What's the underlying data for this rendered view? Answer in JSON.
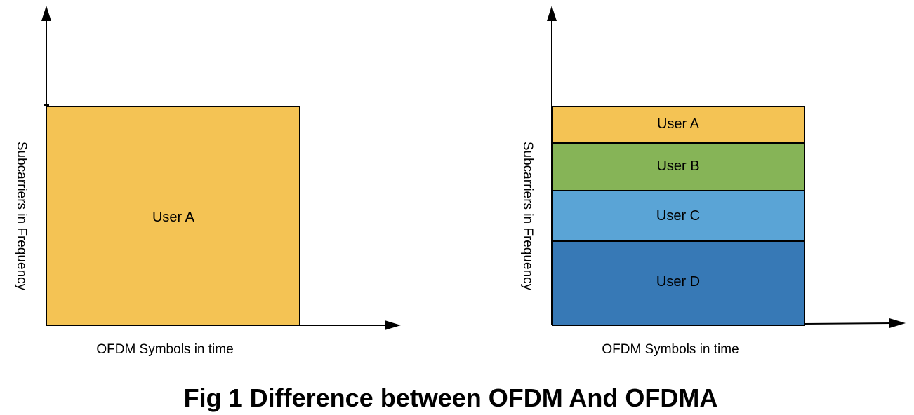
{
  "colors": {
    "user_a": "#F4C354",
    "user_b": "#86B457",
    "user_c": "#5AA4D6",
    "user_d": "#3779B6",
    "stroke": "#000000"
  },
  "ofdm": {
    "y_axis_label": "Subcarriers in Frequency",
    "x_axis_label": "OFDM Symbols in time",
    "blocks": [
      {
        "label": "User A"
      }
    ]
  },
  "ofdma": {
    "y_axis_label": "Subcarriers in Frequency",
    "x_axis_label": "OFDM Symbols in time",
    "blocks": [
      {
        "label": "User A"
      },
      {
        "label": "User B"
      },
      {
        "label": "User C"
      },
      {
        "label": "User D"
      }
    ]
  },
  "caption": "Fig 1 Difference between OFDM And OFDMA"
}
